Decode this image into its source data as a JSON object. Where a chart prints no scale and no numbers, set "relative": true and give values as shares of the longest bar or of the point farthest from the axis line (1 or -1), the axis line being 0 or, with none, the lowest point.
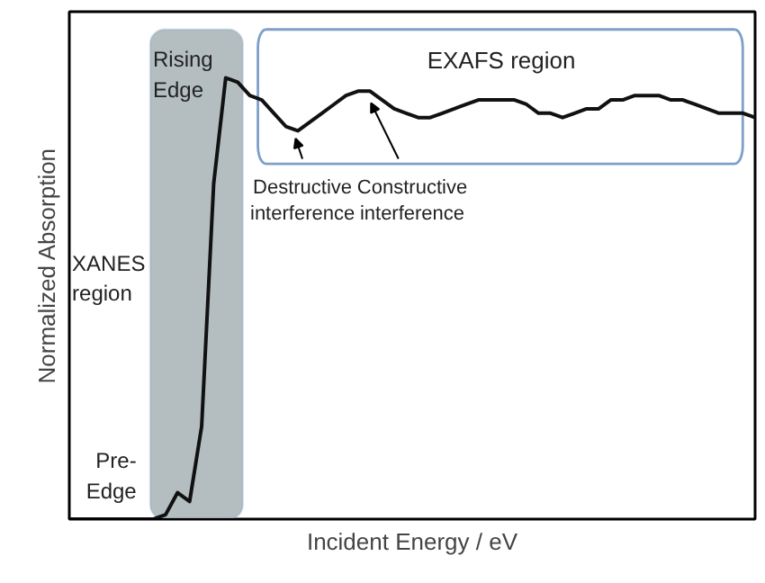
{
  "chart_data": {
    "type": "line",
    "relative": true,
    "xlabel": "Incident Energy / eV",
    "ylabel": "Normalized Absorption",
    "marker": "none",
    "line_style": "solid",
    "categories": [
      null,
      null,
      null,
      null,
      null,
      null,
      null,
      null,
      null,
      null,
      null,
      null,
      null,
      null,
      null,
      null,
      null,
      null,
      null,
      null,
      null,
      null,
      null,
      null,
      null,
      null,
      null,
      null,
      null,
      null,
      null,
      null,
      null,
      null,
      null,
      null,
      null,
      null,
      null,
      null,
      null,
      null,
      null,
      null,
      null,
      null,
      null,
      null,
      null,
      null,
      null,
      null,
      null,
      null,
      null,
      null,
      null,
      null
    ],
    "series": [
      {
        "color": "#111111",
        "values": [
          0,
          0,
          0,
          0,
          0,
          0,
          0,
          0,
          0.01,
          0.06,
          0.04,
          0.21,
          0.76,
          1,
          0.99,
          0.96,
          0.95,
          0.92,
          0.89,
          0.88,
          0.9,
          0.92,
          0.94,
          0.96,
          0.97,
          0.97,
          0.95,
          0.93,
          0.92,
          0.91,
          0.91,
          0.92,
          0.93,
          0.94,
          0.95,
          0.95,
          0.95,
          0.95,
          0.94,
          0.92,
          0.92,
          0.91,
          0.92,
          0.93,
          0.93,
          0.95,
          0.95,
          0.96,
          0.96,
          0.96,
          0.95,
          0.95,
          0.94,
          0.93,
          0.92,
          0.92,
          0.92,
          0.91
        ]
      }
    ],
    "annotations": [
      "Rising Edge",
      "EXAFS region",
      "Destructive interference",
      "Constructive interference",
      "XANES region",
      "Pre-Edge"
    ]
  }
}
